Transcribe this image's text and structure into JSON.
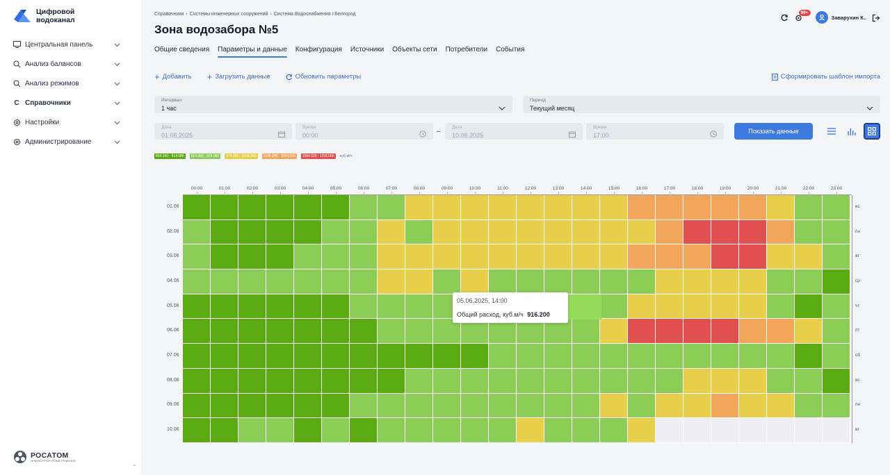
{
  "app": {
    "logo_line1": "Цифровой",
    "logo_line2": "водоканал",
    "brand_blue": "#3d7ae0"
  },
  "sidebar": {
    "items": [
      {
        "label": "Центральная панель",
        "icon": "monitor-icon"
      },
      {
        "label": "Анализ балансов",
        "icon": "balance-analysis-icon"
      },
      {
        "label": "Анализ режимов",
        "icon": "mode-analysis-icon"
      },
      {
        "label": "Справочники",
        "icon": "reference-c-icon",
        "icon_glyph": "C"
      },
      {
        "label": "Настройки",
        "icon": "gear-icon"
      },
      {
        "label": "Администрирование",
        "icon": "admin-gear-icon"
      }
    ],
    "footer_brand": "РОСАТОМ",
    "footer_sub": "ИНФРАСТРУКТУРНЫЕ РЕШЕНИЯ"
  },
  "header": {
    "breadcrumbs": [
      "Справочники",
      "Системы инженерных сооружений",
      "Система Водоснабжения г.Белгород"
    ],
    "title": "Зона водозабора №5",
    "notifications_badge": "99+",
    "user_name": "Заварухин К.."
  },
  "tabs": [
    {
      "label": "Общие сведения",
      "active": false
    },
    {
      "label": "Параметры и данные",
      "active": true
    },
    {
      "label": "Конфигурация",
      "active": false
    },
    {
      "label": "Источники",
      "active": false
    },
    {
      "label": "Объекты сети",
      "active": false
    },
    {
      "label": "Потребители",
      "active": false
    },
    {
      "label": "События",
      "active": false
    }
  ],
  "actions": {
    "add": "Добавить",
    "upload": "Загрузить данные",
    "refresh": "Обновить параметры",
    "template": "Сформировать шаблон импорта"
  },
  "filters": {
    "interval_label": "Интервал",
    "interval_value": "1 час",
    "period_label": "Период",
    "period_value": "Текущий месяц",
    "date_from_label": "Дата",
    "date_from_value": "01.06.2025",
    "time_from_label": "Время",
    "time_from_value": "00:00",
    "range_dash": "–",
    "date_to_label": "Дата",
    "date_to_value": "10.06.2025",
    "time_to_label": "Время",
    "time_to_value": "17:00",
    "show_button": "Показать данные"
  },
  "legend": {
    "items": [
      {
        "label": "854.100 - 914.080",
        "color": "#5aab12"
      },
      {
        "label": "914.080 - 974.060",
        "color": "#8ccd58"
      },
      {
        "label": "974.060 - 1034.040",
        "color": "#e7cf4b"
      },
      {
        "label": "1034.040 - 1094.020",
        "color": "#f2a65c"
      },
      {
        "label": "1094.020 - 1155.000",
        "color": "#e14f4f"
      }
    ],
    "unit": "куб.м/ч"
  },
  "chart_data": {
    "type": "heatmap",
    "x_categories": [
      "00:00",
      "01:00",
      "02:00",
      "03:00",
      "04:00",
      "05:00",
      "06:00",
      "07:00",
      "08:00",
      "09:00",
      "10:00",
      "11:00",
      "12:00",
      "13:00",
      "14:00",
      "15:00",
      "16:00",
      "17:00",
      "18:00",
      "19:00",
      "20:00",
      "21:00",
      "22:00",
      "23:00"
    ],
    "y_categories": [
      "01.06",
      "02.06",
      "03.06",
      "04.06",
      "05.06",
      "06.06",
      "07.06",
      "08.06",
      "09.06",
      "10.06"
    ],
    "y_right_labels": [
      "вс",
      "пн",
      "вт",
      "ср",
      "чт",
      "пт",
      "сб",
      "вс",
      "пн",
      "вт"
    ],
    "unit": "куб.м/ч",
    "bins": [
      {
        "range": [
          854.1,
          914.08
        ],
        "color": "#5aab12"
      },
      {
        "range": [
          914.08,
          974.06
        ],
        "color": "#8ccd58"
      },
      {
        "range": [
          974.06,
          1034.04
        ],
        "color": "#e7cf4b"
      },
      {
        "range": [
          1034.04,
          1094.02
        ],
        "color": "#f2a65c"
      },
      {
        "range": [
          1094.02,
          1155.0
        ],
        "color": "#e14f4f"
      }
    ],
    "no_data_color": "#eeeef3",
    "bin_matrix": [
      [
        0,
        0,
        0,
        0,
        0,
        0,
        1,
        1,
        2,
        2,
        2,
        2,
        2,
        2,
        2,
        2,
        3,
        3,
        3,
        3,
        3,
        2,
        1,
        1
      ],
      [
        1,
        0,
        0,
        0,
        0,
        1,
        1,
        2,
        1,
        2,
        2,
        2,
        2,
        2,
        2,
        2,
        2,
        3,
        4,
        4,
        4,
        3,
        1,
        1
      ],
      [
        1,
        0,
        0,
        0,
        1,
        1,
        1,
        2,
        2,
        2,
        2,
        2,
        2,
        2,
        2,
        2,
        3,
        3,
        3,
        4,
        4,
        2,
        2,
        1
      ],
      [
        1,
        1,
        1,
        1,
        1,
        1,
        1,
        2,
        2,
        1,
        2,
        1,
        1,
        1,
        1,
        1,
        1,
        2,
        2,
        2,
        2,
        1,
        1,
        0
      ],
      [
        0,
        0,
        0,
        0,
        0,
        0,
        1,
        1,
        1,
        1,
        1,
        1,
        1,
        1,
        1,
        1,
        2,
        2,
        2,
        2,
        2,
        1,
        0,
        1
      ],
      [
        0,
        0,
        0,
        0,
        0,
        0,
        0,
        1,
        1,
        1,
        1,
        1,
        1,
        1,
        1,
        2,
        4,
        4,
        4,
        4,
        3,
        3,
        2,
        1
      ],
      [
        0,
        0,
        0,
        0,
        0,
        0,
        0,
        0,
        0,
        0,
        0,
        1,
        1,
        1,
        1,
        1,
        1,
        1,
        1,
        1,
        1,
        1,
        0,
        1
      ],
      [
        0,
        0,
        0,
        0,
        0,
        0,
        0,
        0,
        1,
        1,
        1,
        1,
        1,
        1,
        1,
        1,
        1,
        1,
        2,
        2,
        2,
        1,
        1,
        0
      ],
      [
        0,
        0,
        0,
        0,
        0,
        0,
        1,
        1,
        1,
        1,
        1,
        1,
        1,
        1,
        1,
        2,
        1,
        2,
        2,
        3,
        2,
        2,
        1,
        1
      ],
      [
        0,
        0,
        1,
        1,
        0,
        1,
        0,
        1,
        1,
        1,
        1,
        1,
        2,
        1,
        1,
        1,
        2,
        null,
        null,
        null,
        null,
        null,
        null,
        null
      ]
    ],
    "tooltip": {
      "datetime": "05.06.2025, 14:00",
      "series_label": "Общий расход, куб.м/ч",
      "value": 916.2,
      "value_text": "916.200"
    }
  }
}
